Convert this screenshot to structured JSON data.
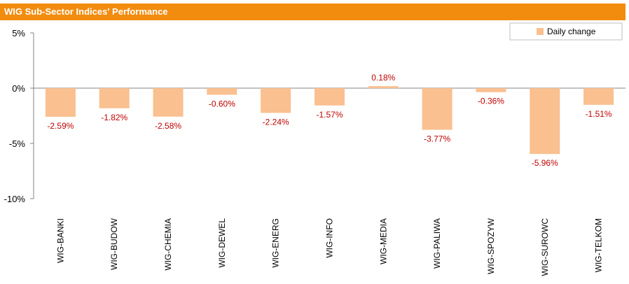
{
  "chart_data": {
    "type": "bar",
    "title": "WIG Sub-Sector Indices' Performance",
    "categories": [
      "WIG-BANKI",
      "WIG-BUDOW",
      "WIG-CHEMIA",
      "WIG-DEWEL",
      "WIG-ENERG",
      "WIG-INFO",
      "WIG-MEDIA",
      "WIG-PALIWA",
      "WIG-SPOZYW",
      "WIG-SUROWC",
      "WIG-TELKOM"
    ],
    "series": [
      {
        "name": "Daily change",
        "values": [
          -2.59,
          -1.82,
          -2.58,
          -0.6,
          -2.24,
          -1.57,
          0.18,
          -3.77,
          -0.36,
          -5.96,
          -1.51
        ]
      }
    ],
    "data_labels": [
      "-2.59%",
      "-1.82%",
      "-2.58%",
      "-0.60%",
      "-2.24%",
      "-1.57%",
      "0.18%",
      "-3.77%",
      "-0.36%",
      "-5.96%",
      "-1.51%"
    ],
    "y_ticks": [
      5,
      0,
      -5,
      -10
    ],
    "y_tick_labels": [
      "5%",
      "0%",
      "-5%",
      "-10%"
    ],
    "ylim": [
      -10,
      5
    ],
    "xlabel": "",
    "ylabel": "",
    "legend_position": "top-right",
    "grid": false,
    "colors": {
      "bar": "#fac090",
      "label": "#c00000",
      "axis": "#868686",
      "title_bg": "#f28c0f"
    }
  }
}
